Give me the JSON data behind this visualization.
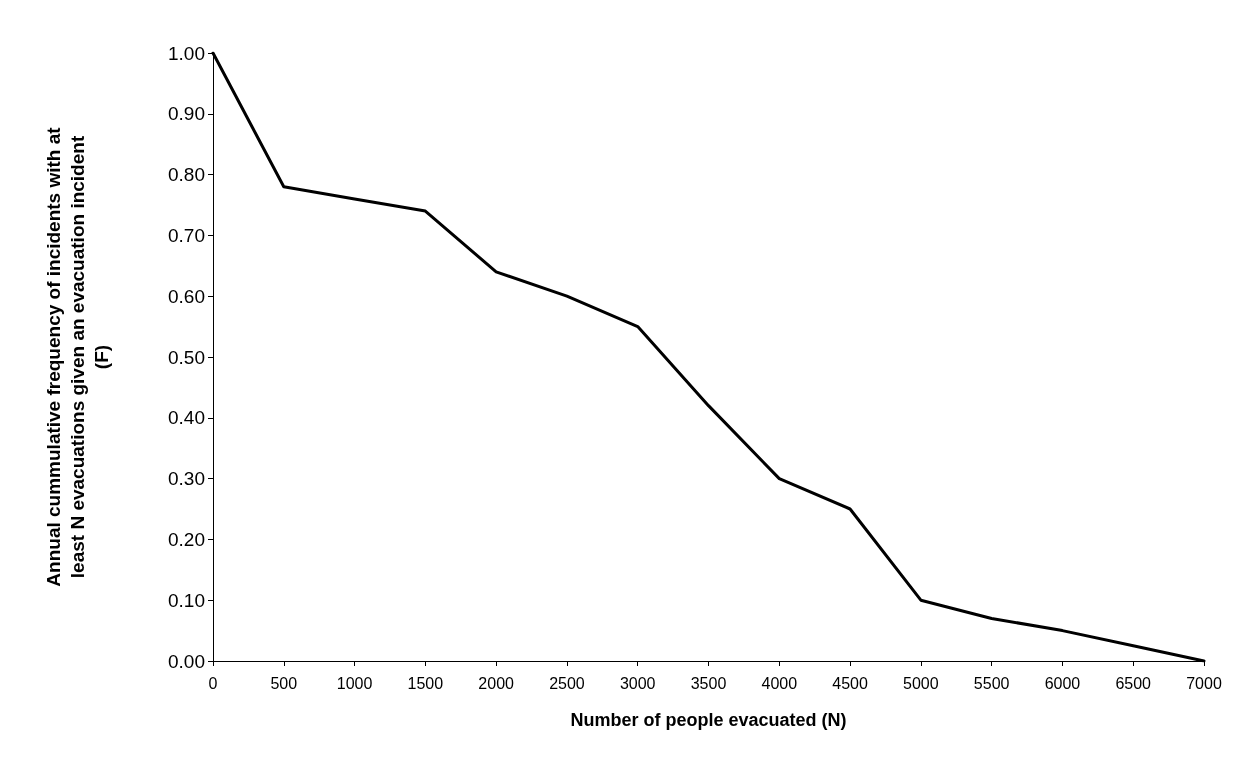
{
  "chart_data": {
    "type": "line",
    "xlabel": "Number of people evacuated (N)",
    "ylabel": "Annual cummulative frequency of incidents with at least N evacuations given an evacuation incident (F)",
    "x": [
      0,
      500,
      1000,
      1500,
      2000,
      2500,
      3000,
      3500,
      4000,
      4500,
      5000,
      5500,
      6000,
      6500,
      7000
    ],
    "series": [
      {
        "color": "#000000",
        "values": [
          1.0,
          0.78,
          0.76,
          0.74,
          0.64,
          0.6,
          0.55,
          0.42,
          0.3,
          0.25,
          0.1,
          0.07,
          0.05,
          0.025,
          0.0
        ]
      }
    ],
    "xlim": [
      0,
      7000
    ],
    "xticks": [
      0,
      500,
      1000,
      1500,
      2000,
      2500,
      3000,
      3500,
      4000,
      4500,
      5000,
      5500,
      6000,
      6500,
      7000
    ],
    "ylim": [
      0,
      1
    ],
    "yticks": [
      {
        "value": 0,
        "label": "0.00"
      },
      {
        "value": 0.1,
        "label": "0.10"
      },
      {
        "value": 0.2,
        "label": "0.20"
      },
      {
        "value": 0.3,
        "label": "0.30"
      },
      {
        "value": 0.4,
        "label": "0.40"
      },
      {
        "value": 0.5,
        "label": "0.50"
      },
      {
        "value": 0.6,
        "label": "0.60"
      },
      {
        "value": 0.7,
        "label": "0.70"
      },
      {
        "value": 0.8,
        "label": "0.80"
      },
      {
        "value": 0.9,
        "label": "0.90"
      },
      {
        "value": 1,
        "label": "1.00"
      }
    ],
    "grid": false,
    "marker": "none",
    "line_style": "solid"
  }
}
